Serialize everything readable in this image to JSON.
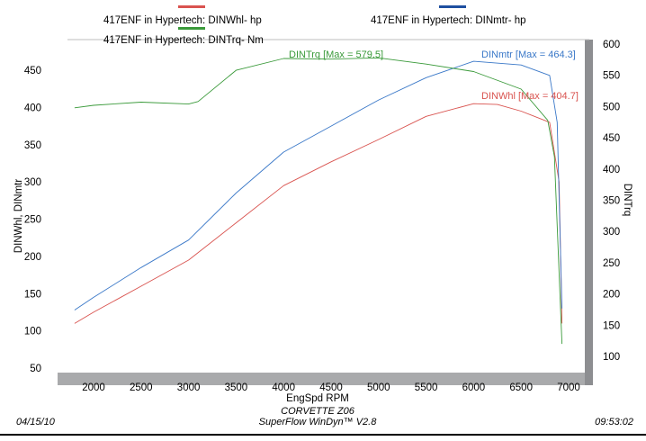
{
  "legend": [
    {
      "label": "417ENF in Hypertech: DINWhl-  hp",
      "color": "#d9534f"
    },
    {
      "label": "417ENF in Hypertech: DINTrq-  Nm",
      "color": "#3a9a3a"
    },
    {
      "label": "417ENF in Hypertech: DINmtr-  hp",
      "color": "#1e4fa0"
    }
  ],
  "footer": {
    "date": "04/15/10",
    "time": "09:53:02",
    "car": "CORVETTE Z06",
    "software": "SuperFlow WinDyn™ V2.8"
  },
  "chart_data": {
    "type": "line",
    "xlabel": "EngSpd  RPM",
    "ylabel_left": "DINWhl, DINmtr",
    "ylabel_right": "DINTrq",
    "xlim": [
      1500,
      7150
    ],
    "ylim_left": [
      40,
      480
    ],
    "ylim_right": [
      80,
      600
    ],
    "x_ticks": [
      2000,
      2500,
      3000,
      3500,
      4000,
      4500,
      5000,
      5500,
      6000,
      6500,
      7000
    ],
    "y_left_ticks": [
      50,
      100,
      150,
      200,
      250,
      300,
      350,
      400,
      450
    ],
    "y_right_ticks": [
      100,
      150,
      200,
      250,
      300,
      350,
      400,
      450,
      500,
      550,
      600
    ],
    "grid": false,
    "series": [
      {
        "name": "DINWhl",
        "axis": "left",
        "color": "#d9534f",
        "annotation": "DINWhl [Max = 404.7]",
        "x": [
          1800,
          2000,
          2500,
          3000,
          3500,
          4000,
          4500,
          5000,
          5500,
          6000,
          6250,
          6500,
          6800,
          6900,
          6930
        ],
        "y": [
          110,
          125,
          160,
          195,
          245,
          295,
          327,
          357,
          388,
          405,
          404,
          395,
          380,
          300,
          110
        ]
      },
      {
        "name": "DINmtr",
        "axis": "left",
        "color": "#3a78c8",
        "annotation": "DINmtr [Max = 464.3]",
        "x": [
          1800,
          2000,
          2500,
          3000,
          3500,
          4000,
          4500,
          5000,
          5500,
          6000,
          6500,
          6800,
          6880,
          6930
        ],
        "y": [
          128,
          145,
          185,
          222,
          285,
          340,
          375,
          410,
          440,
          462,
          457,
          443,
          380,
          130
        ]
      },
      {
        "name": "DINTrq",
        "axis": "right",
        "color": "#3a9a3a",
        "annotation": "DINTrq [Max = 579.5]",
        "x": [
          1800,
          2000,
          2500,
          3000,
          3100,
          3500,
          4000,
          4500,
          5000,
          5500,
          6000,
          6500,
          6780,
          6850,
          6930
        ],
        "y": [
          498,
          502,
          507,
          504,
          508,
          558,
          577,
          576,
          578,
          568,
          556,
          528,
          478,
          420,
          120
        ]
      }
    ]
  }
}
